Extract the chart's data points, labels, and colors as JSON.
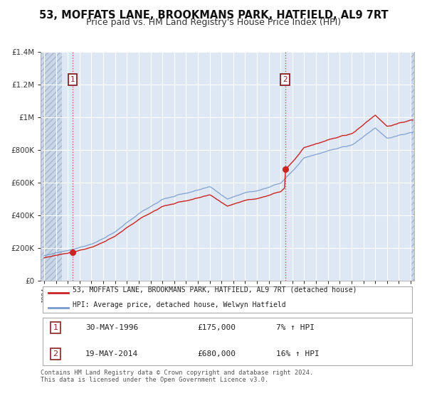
{
  "title1": "53, MOFFATS LANE, BROOKMANS PARK, HATFIELD, AL9 7RT",
  "title2": "Price paid vs. HM Land Registry's House Price Index (HPI)",
  "legend_red": "53, MOFFATS LANE, BROOKMANS PARK, HATFIELD, AL9 7RT (detached house)",
  "legend_blue": "HPI: Average price, detached house, Welwyn Hatfield",
  "annotation1_date": "30-MAY-1996",
  "annotation1_price": "£175,000",
  "annotation1_hpi": "7% ↑ HPI",
  "annotation2_date": "19-MAY-2014",
  "annotation2_price": "£680,000",
  "annotation2_hpi": "16% ↑ HPI",
  "footnote": "Contains HM Land Registry data © Crown copyright and database right 2024.\nThis data is licensed under the Open Government Licence v3.0.",
  "sale1_year": 1996.41,
  "sale1_value": 175000,
  "sale2_year": 2014.38,
  "sale2_value": 680000,
  "ylim": [
    0,
    1400000
  ],
  "xlim_start": 1993.7,
  "xlim_end": 2025.3,
  "hatch_left_end": 1995.5,
  "hatch_right_start": 2025.0,
  "background_color": "#dde8f4",
  "red_line_color": "#cc2222",
  "blue_line_color": "#7799cc",
  "dashed_line_color": "#cc4444",
  "grid_color": "#ffffff",
  "fig_bg": "#ffffff"
}
